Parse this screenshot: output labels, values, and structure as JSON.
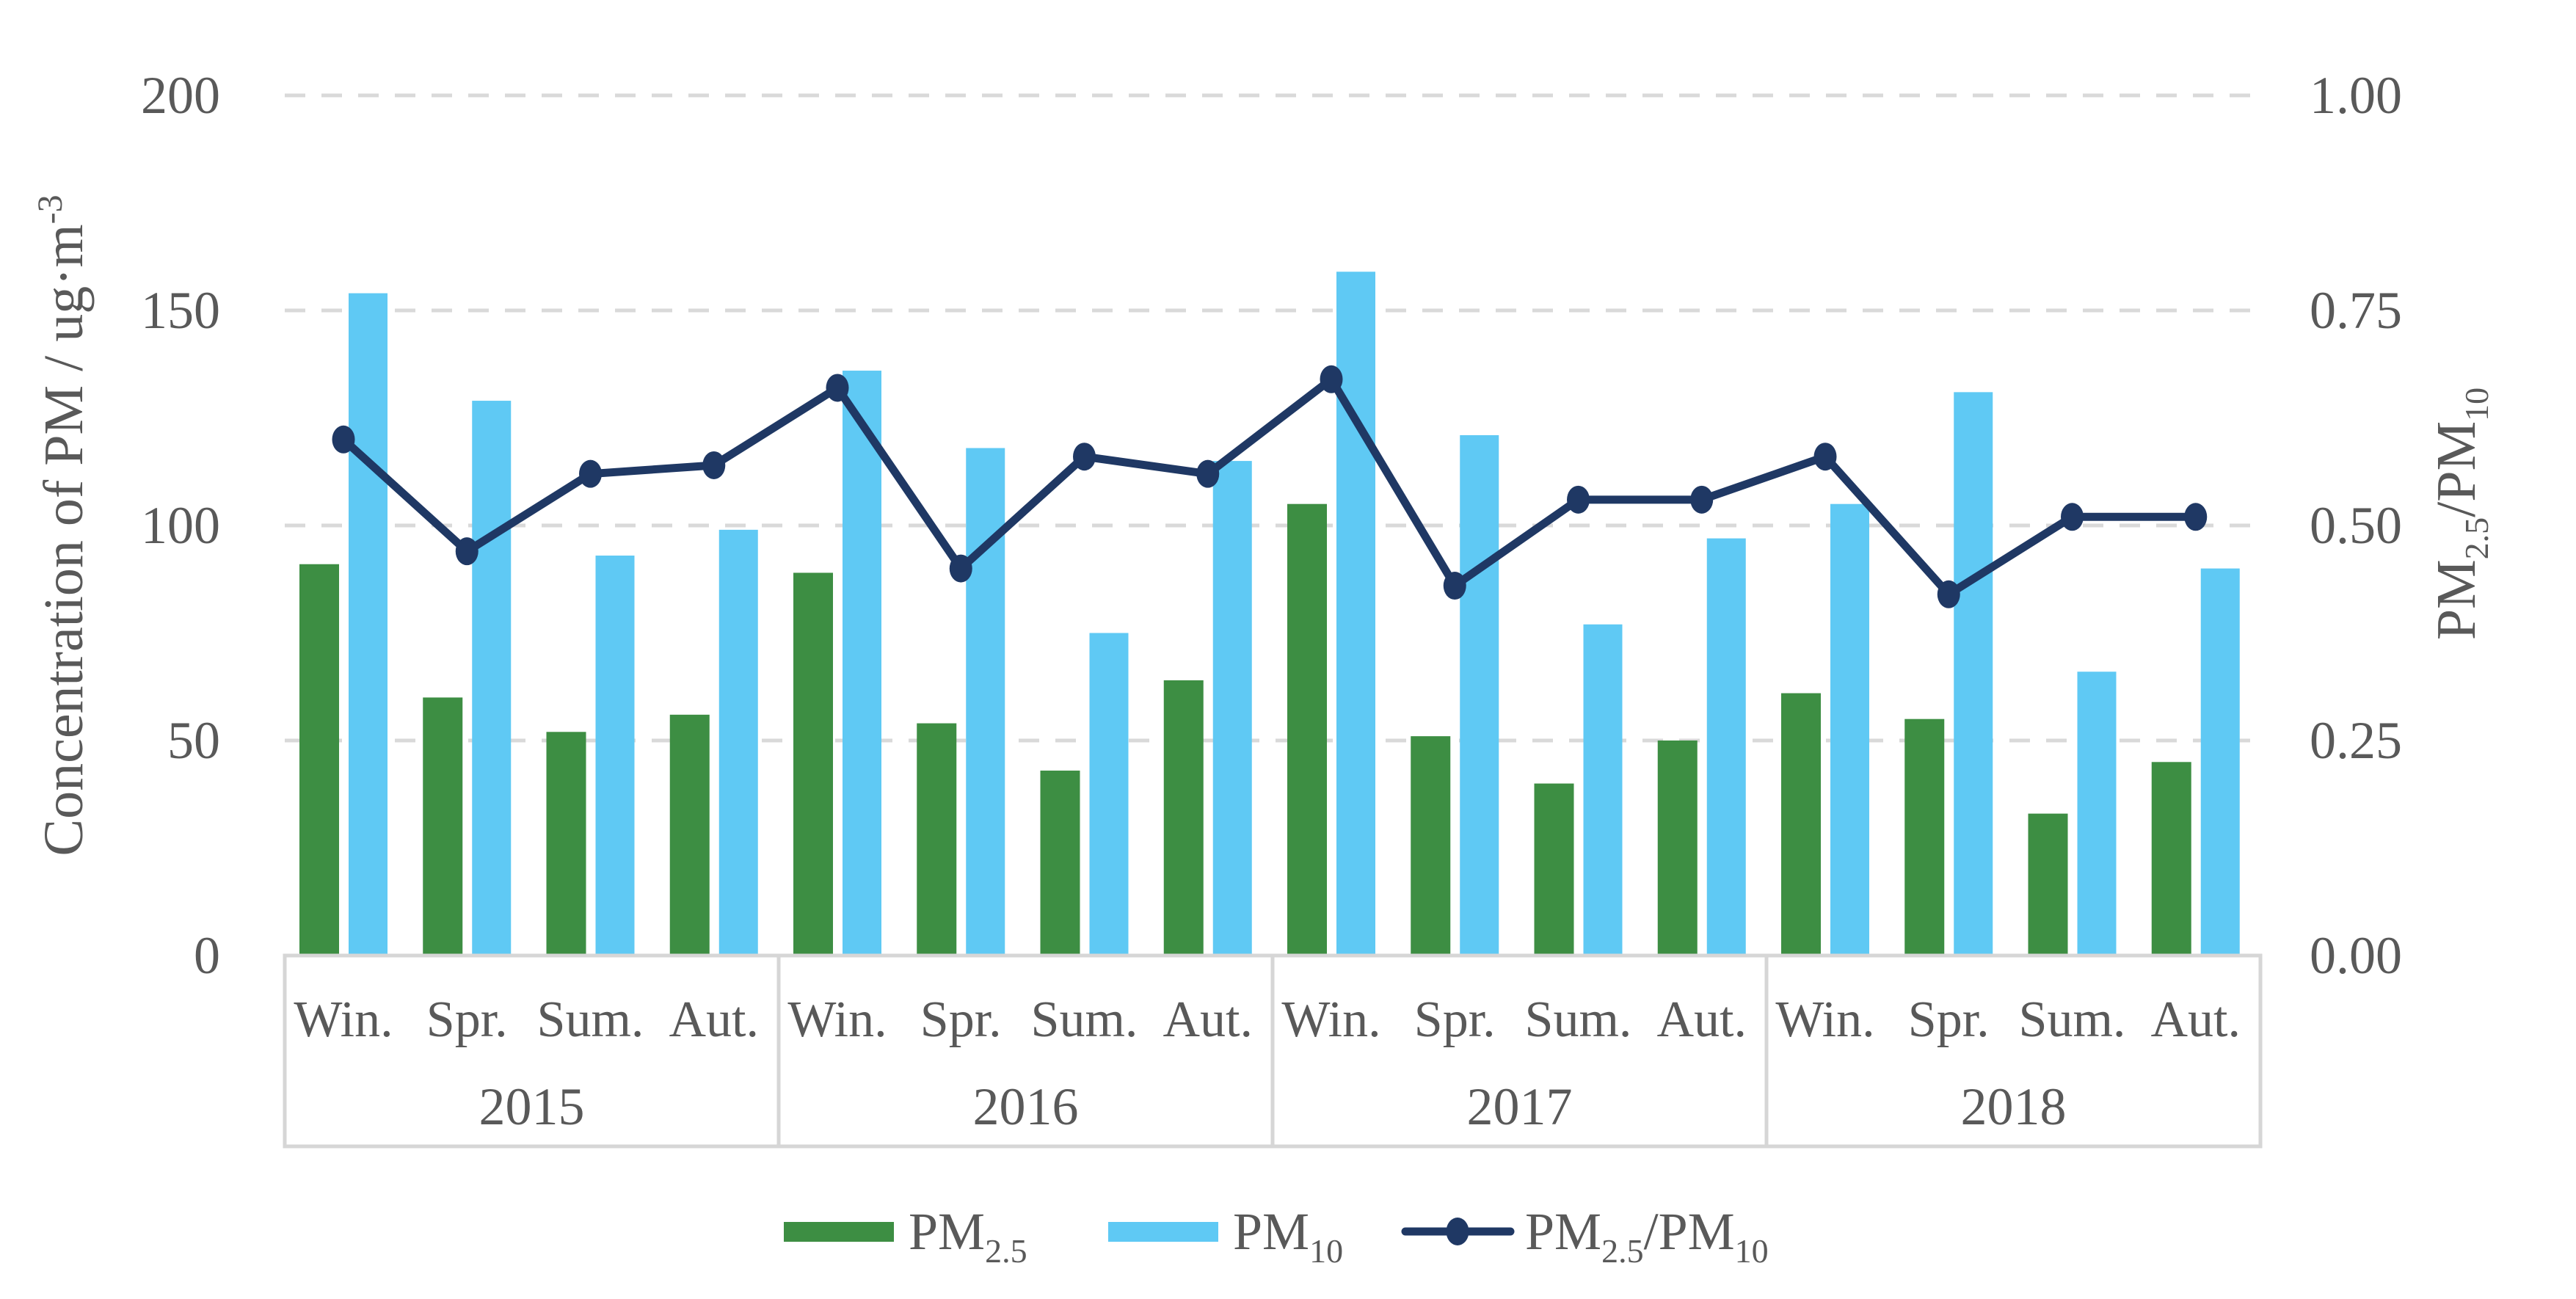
{
  "chart_data": {
    "type": "combo-bar-line",
    "title": "",
    "categories": {
      "years": [
        "2015",
        "2016",
        "2017",
        "2018"
      ],
      "seasons": [
        "Win.",
        "Spr.",
        "Sum.",
        "Aut."
      ]
    },
    "left_axis": {
      "title": {
        "main": "Concentration of PM / ug·m",
        "sup": "-3"
      },
      "tick_values": [
        0,
        50,
        100,
        150,
        200
      ],
      "tick_labels": [
        "0",
        "50",
        "100",
        "150",
        "200"
      ],
      "range": [
        0,
        200
      ]
    },
    "right_axis": {
      "title": {
        "p1": "PM",
        "s1": "2.5",
        "p2": "/PM",
        "s2": "10"
      },
      "tick_values": [
        0,
        0.25,
        0.5,
        0.75,
        1.0
      ],
      "tick_labels": [
        "0.00",
        "0.25",
        "0.50",
        "0.75",
        "1.00"
      ],
      "range": [
        0,
        1
      ]
    },
    "grid": {
      "horizontal": "dashed",
      "color": "#D9D9D9"
    },
    "frame_color": "#D6D6D6",
    "text_color": "#595959",
    "series": [
      {
        "name": "PM2.5",
        "name_parts": {
          "base": "PM",
          "sub": "2.5"
        },
        "type": "bar",
        "axis": "left",
        "color": "#3D8E43",
        "values": [
          91,
          60,
          52,
          56,
          89,
          54,
          43,
          64,
          105,
          51,
          40,
          50,
          61,
          55,
          33,
          45
        ]
      },
      {
        "name": "PM10",
        "name_parts": {
          "base": "PM",
          "sub": "10"
        },
        "type": "bar",
        "axis": "left",
        "color": "#5FC9F4",
        "values": [
          154,
          129,
          93,
          99,
          136,
          118,
          75,
          115,
          159,
          121,
          77,
          97,
          105,
          131,
          66,
          90
        ]
      },
      {
        "name": "PM2.5/PM10",
        "name_parts": {
          "p1": "PM",
          "s1": "2.5",
          "p2": "/PM",
          "s2": "10"
        },
        "type": "line",
        "axis": "right",
        "color": "#1F3864",
        "values": [
          0.6,
          0.47,
          0.56,
          0.57,
          0.66,
          0.45,
          0.58,
          0.56,
          0.67,
          0.43,
          0.53,
          0.53,
          0.58,
          0.42,
          0.51,
          0.51
        ]
      }
    ],
    "legend": {
      "position": "bottom"
    }
  }
}
